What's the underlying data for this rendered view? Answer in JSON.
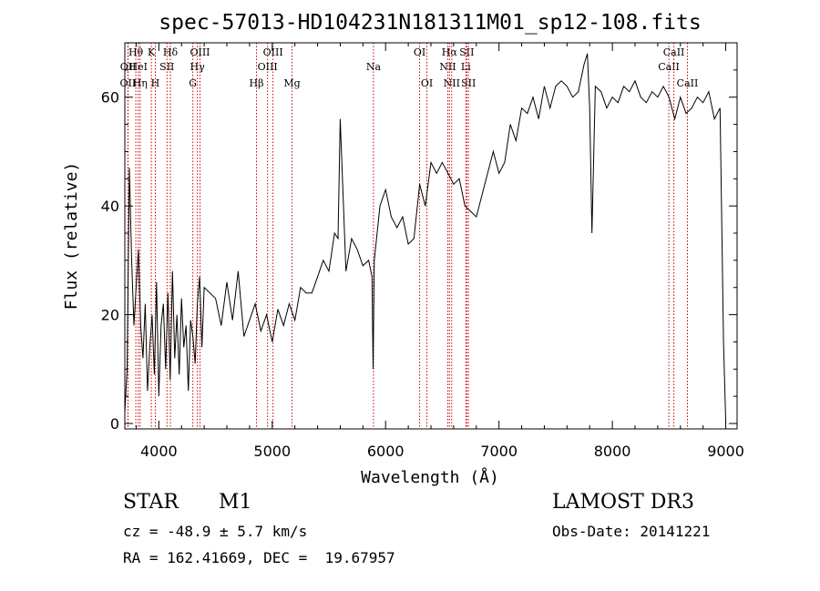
{
  "chart_data": {
    "type": "line",
    "title": "spec-57013-HD104231N181311M01_sp12-108.fits",
    "xlabel": "Wavelength (Å)",
    "ylabel": "Flux (relative)",
    "xlim": [
      3700,
      9100
    ],
    "ylim": [
      -1,
      70
    ],
    "xticks": [
      4000,
      5000,
      6000,
      7000,
      8000,
      9000
    ],
    "yticks": [
      0,
      20,
      40,
      60
    ],
    "line_color": "#000000",
    "marker_color": "#cc0000",
    "series": [
      {
        "name": "flux",
        "x": [
          3700,
          3720,
          3740,
          3760,
          3780,
          3800,
          3820,
          3840,
          3860,
          3880,
          3900,
          3920,
          3940,
          3960,
          3980,
          4000,
          4020,
          4040,
          4060,
          4080,
          4100,
          4120,
          4140,
          4160,
          4180,
          4200,
          4220,
          4240,
          4260,
          4280,
          4300,
          4320,
          4340,
          4360,
          4380,
          4400,
          4450,
          4500,
          4550,
          4600,
          4650,
          4700,
          4750,
          4800,
          4850,
          4900,
          4950,
          5000,
          5050,
          5100,
          5150,
          5200,
          5250,
          5300,
          5350,
          5400,
          5450,
          5500,
          5550,
          5580,
          5600,
          5650,
          5700,
          5750,
          5800,
          5850,
          5880,
          5890,
          5900,
          5950,
          6000,
          6050,
          6100,
          6150,
          6200,
          6250,
          6300,
          6350,
          6400,
          6450,
          6500,
          6550,
          6600,
          6650,
          6700,
          6750,
          6800,
          6850,
          6900,
          6950,
          7000,
          7050,
          7100,
          7150,
          7200,
          7250,
          7300,
          7350,
          7400,
          7450,
          7500,
          7550,
          7600,
          7650,
          7700,
          7750,
          7780,
          7800,
          7820,
          7850,
          7900,
          7950,
          8000,
          8050,
          8100,
          8150,
          8200,
          8250,
          8300,
          8350,
          8400,
          8450,
          8500,
          8550,
          8600,
          8650,
          8700,
          8750,
          8800,
          8850,
          8900,
          8950,
          8980,
          9000
        ],
        "values": [
          2,
          10,
          47,
          30,
          18,
          25,
          32,
          18,
          12,
          22,
          6,
          14,
          20,
          9,
          26,
          5,
          18,
          22,
          10,
          24,
          8,
          28,
          12,
          20,
          9,
          23,
          14,
          18,
          6,
          19,
          16,
          11,
          22,
          27,
          14,
          25,
          24,
          23,
          18,
          26,
          19,
          28,
          16,
          19,
          22,
          17,
          20,
          15,
          21,
          18,
          22,
          19,
          25,
          24,
          24,
          27,
          30,
          28,
          35,
          34,
          56,
          28,
          34,
          32,
          29,
          30,
          27,
          10,
          30,
          40,
          43,
          38,
          36,
          38,
          33,
          34,
          44,
          40,
          48,
          46,
          48,
          46,
          44,
          45,
          40,
          39,
          38,
          42,
          46,
          50,
          46,
          48,
          55,
          52,
          58,
          57,
          60,
          56,
          62,
          58,
          62,
          63,
          62,
          60,
          61,
          66,
          68,
          58,
          35,
          62,
          61,
          58,
          60,
          59,
          62,
          61,
          63,
          60,
          59,
          61,
          60,
          62,
          60,
          56,
          60,
          57,
          58,
          60,
          59,
          61,
          56,
          58,
          15,
          0
        ]
      }
    ],
    "lines": [
      {
        "label": "OII",
        "wavelength": 3727,
        "row": 3
      },
      {
        "label": "OII",
        "wavelength": 3729,
        "row": 2
      },
      {
        "label": "Hθ",
        "wavelength": 3797,
        "row": 1
      },
      {
        "label": "HeI",
        "wavelength": 3819,
        "row": 2
      },
      {
        "label": "Hη",
        "wavelength": 3835,
        "row": 3
      },
      {
        "label": "K",
        "wavelength": 3934,
        "row": 1
      },
      {
        "label": "H",
        "wavelength": 3969,
        "row": 3
      },
      {
        "label": "SII",
        "wavelength": 4072,
        "row": 2
      },
      {
        "label": "Hδ",
        "wavelength": 4102,
        "row": 1
      },
      {
        "label": "G",
        "wavelength": 4300,
        "row": 3
      },
      {
        "label": "Hγ",
        "wavelength": 4340,
        "row": 2
      },
      {
        "label": "OIII",
        "wavelength": 4363,
        "row": 1
      },
      {
        "label": "Hβ",
        "wavelength": 4861,
        "row": 3
      },
      {
        "label": "OIII",
        "wavelength": 4959,
        "row": 2
      },
      {
        "label": "OIII",
        "wavelength": 5007,
        "row": 1
      },
      {
        "label": "Mg",
        "wavelength": 5175,
        "row": 3
      },
      {
        "label": "Na",
        "wavelength": 5893,
        "row": 2
      },
      {
        "label": "OI",
        "wavelength": 6300,
        "row": 1
      },
      {
        "label": "OI",
        "wavelength": 6364,
        "row": 3
      },
      {
        "label": "NII",
        "wavelength": 6548,
        "row": 2
      },
      {
        "label": "Hα",
        "wavelength": 6563,
        "row": 1
      },
      {
        "label": "NII",
        "wavelength": 6583,
        "row": 3
      },
      {
        "label": "Li",
        "wavelength": 6708,
        "row": 2
      },
      {
        "label": "SII",
        "wavelength": 6716,
        "row": 1
      },
      {
        "label": "SII",
        "wavelength": 6731,
        "row": 3
      },
      {
        "label": "CaII",
        "wavelength": 8498,
        "row": 2
      },
      {
        "label": "CaII",
        "wavelength": 8542,
        "row": 1
      },
      {
        "label": "CaII",
        "wavelength": 8662,
        "row": 3
      }
    ]
  },
  "info": {
    "class": "STAR",
    "subclass": "M1",
    "survey": "LAMOST DR3",
    "cz": "cz = -48.9 ± 5.7 km/s",
    "obs_date": "Obs-Date: 20141221",
    "radec": "RA = 162.41669, DEC =  19.67957"
  }
}
